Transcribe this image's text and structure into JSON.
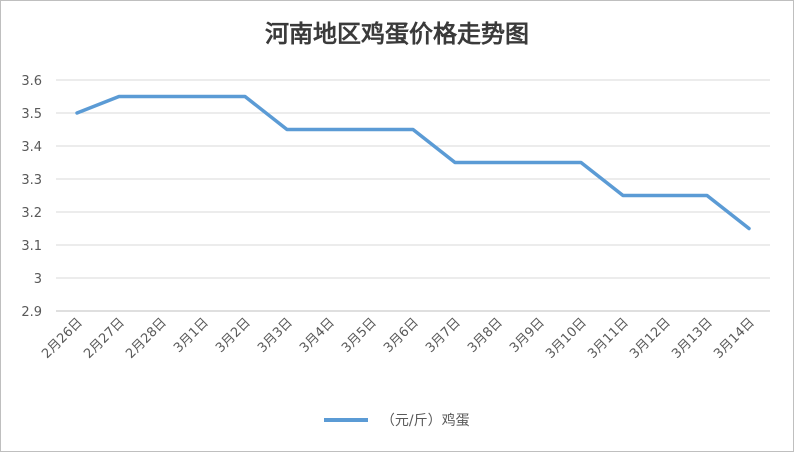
{
  "chart_data": {
    "type": "line",
    "title": "河南地区鸡蛋价格走势图",
    "categories": [
      "2月26日",
      "2月27日",
      "2月28日",
      "3月1日",
      "3月2日",
      "3月3日",
      "3月4日",
      "3月5日",
      "3月6日",
      "3月7日",
      "3月8日",
      "3月9日",
      "3月10日",
      "3月11日",
      "3月12日",
      "3月13日",
      "3月14日"
    ],
    "series": [
      {
        "name": "（元/斤）鸡蛋",
        "color": "#5b9bd5",
        "values": [
          3.5,
          3.55,
          3.55,
          3.55,
          3.55,
          3.45,
          3.45,
          3.45,
          3.45,
          3.35,
          3.35,
          3.35,
          3.35,
          3.25,
          3.25,
          3.25,
          3.15
        ]
      }
    ],
    "ylim": [
      2.9,
      3.6
    ],
    "yticks": [
      2.9,
      3,
      3.1,
      3.2,
      3.3,
      3.4,
      3.5,
      3.6
    ],
    "grid": true,
    "legend_position": "bottom"
  }
}
